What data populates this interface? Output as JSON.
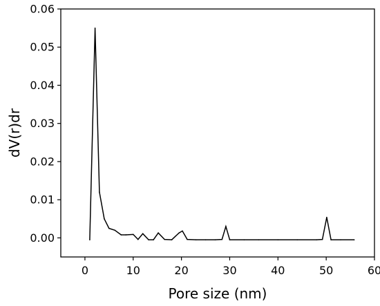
{
  "chart_data": {
    "type": "line",
    "title": "",
    "xlabel": "Pore size (nm)",
    "ylabel": "dV(r)dr",
    "xlim": [
      -5,
      60
    ],
    "ylim": [
      -0.005,
      0.06
    ],
    "xticks": [
      0,
      10,
      20,
      30,
      40,
      50,
      60
    ],
    "yticks": [
      0.0,
      0.01,
      0.02,
      0.03,
      0.04,
      0.05,
      0.06
    ],
    "xtick_labels": [
      "0",
      "10",
      "20",
      "30",
      "40",
      "50",
      "60"
    ],
    "ytick_labels": [
      "0.00",
      "0.01",
      "0.02",
      "0.03",
      "0.04",
      "0.05",
      "0.06"
    ],
    "grid": false,
    "legend": "none",
    "line_color": "#000000",
    "series": [
      {
        "x": [
          1.0,
          2.1,
          3.0,
          4.0,
          5.0,
          6.2,
          7.5,
          8.5,
          10.0,
          11.0,
          12.0,
          13.2,
          14.2,
          15.2,
          16.5,
          18.0,
          19.5,
          20.2,
          21.2,
          23.0,
          25.0,
          27.0,
          28.4,
          29.2,
          30.0,
          33.0,
          36.0,
          40.0,
          44.0,
          48.0,
          49.2,
          50.1,
          51.0,
          53.0,
          55.8
        ],
        "y": [
          -0.0005,
          0.055,
          0.012,
          0.005,
          0.0025,
          0.002,
          0.0008,
          0.0008,
          0.0009,
          -0.0004,
          0.0011,
          -0.0005,
          -0.0005,
          0.0013,
          -0.0004,
          -0.0005,
          0.0013,
          0.0018,
          -0.0004,
          -0.0005,
          -0.0005,
          -0.0005,
          -0.0004,
          0.003,
          -0.0005,
          -0.0005,
          -0.0005,
          -0.0005,
          -0.0005,
          -0.0005,
          -0.0004,
          0.0054,
          -0.0005,
          -0.0005,
          -0.0005
        ]
      }
    ]
  }
}
